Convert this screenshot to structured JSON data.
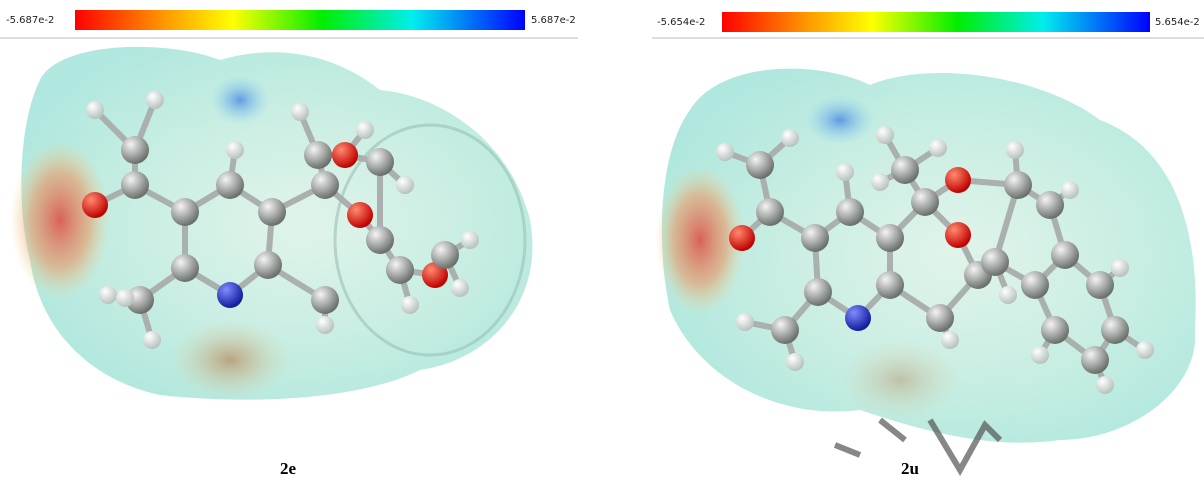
{
  "panels": [
    {
      "scale_min": "-5.687e-2",
      "scale_max": "5.687e-2",
      "caption": "2e"
    },
    {
      "scale_min": "-5.654e-2",
      "scale_max": "5.654e-2",
      "caption": "2u"
    }
  ]
}
